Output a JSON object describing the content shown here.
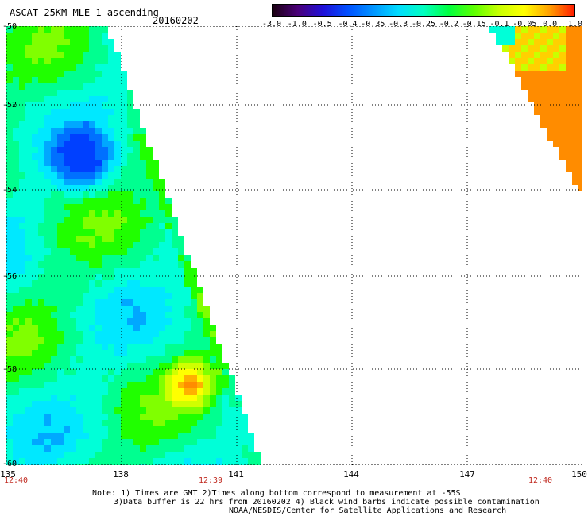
{
  "header": {
    "title": "ASCAT 25KM MLE-1 ascending",
    "date": "20160202"
  },
  "colorbar": {
    "labels": [
      "-3.0",
      "-1.0",
      "-0.5",
      "-0.4",
      "-0.35",
      "-0.3",
      "-0.25",
      "-0.2",
      "-0.15",
      "-0.1",
      "-0.05",
      "0.0",
      "1.0"
    ],
    "colors": [
      "#1a0010",
      "#4a0078",
      "#2010d8",
      "#0050ff",
      "#0094ff",
      "#00dcff",
      "#00ffc0",
      "#00ff40",
      "#5cff00",
      "#c8ff00",
      "#ffff00",
      "#ffa000",
      "#ff1a00"
    ]
  },
  "axes": {
    "lat_labels": [
      "-50",
      "-52",
      "-54",
      "-56",
      "-58",
      "-60"
    ],
    "lon_labels": [
      "135",
      "138",
      "141",
      "144",
      "147",
      "150"
    ],
    "time_labels": [
      "12:40",
      "12:39",
      "12:40"
    ]
  },
  "notes": {
    "line1": "Note: 1) Times are GMT 2)Times along bottom correspond to measurement at -55S",
    "line2": "3)Data buffer is 22 hrs from 20160202 4) Black wind barbs indicate possible contamination",
    "line3": "NOAA/NESDIS/Center for Satellite Applications and Research"
  }
}
